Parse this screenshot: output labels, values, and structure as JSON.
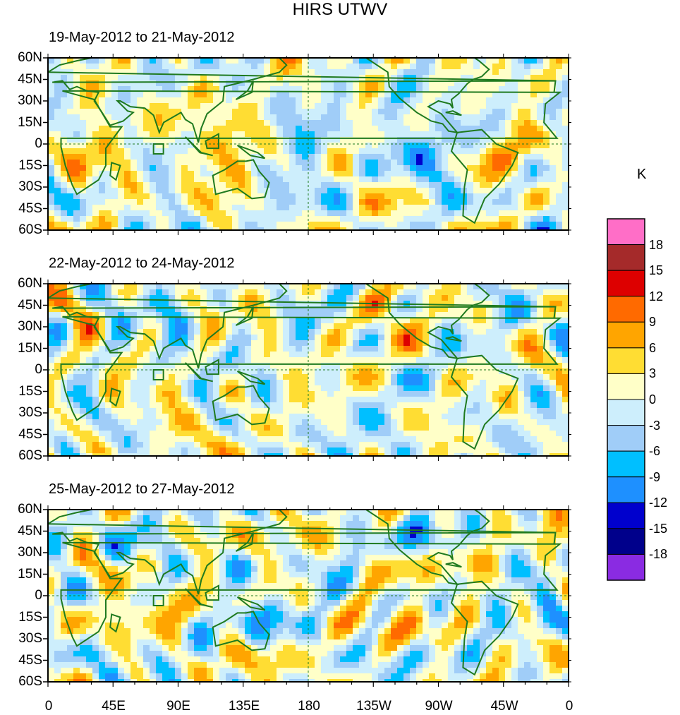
{
  "title": "HIRS UTWV",
  "unit": "K",
  "panels": [
    {
      "title": "19-May-2012 to 21-May-2012",
      "seed": 3
    },
    {
      "title": "22-May-2012 to 24-May-2012",
      "seed": 11
    },
    {
      "title": "25-May-2012 to 27-May-2012",
      "seed": 23
    }
  ],
  "lat_labels": [
    "60N",
    "45N",
    "30N",
    "15N",
    "0",
    "15S",
    "30S",
    "45S",
    "60S"
  ],
  "lon_labels": [
    "0",
    "45E",
    "90E",
    "135E",
    "180",
    "135W",
    "90W",
    "45W",
    "0"
  ],
  "colorbar": {
    "labels": [
      "18",
      "15",
      "12",
      "9",
      "6",
      "3",
      "0",
      "-3",
      "-6",
      "-9",
      "-12",
      "-15",
      "-18"
    ],
    "colors": [
      "#ff6ec7",
      "#a52a2a",
      "#dd0000",
      "#ff6a00",
      "#ffa500",
      "#ffdd33",
      "#ffffc8",
      "#cdeefc",
      "#a0cdf8",
      "#00bfff",
      "#1e90ff",
      "#0000cd",
      "#00008b",
      "#8a2be2"
    ]
  },
  "colors": {
    "coast": "#1f7a1f",
    "grid": "#1f7a1f",
    "frame": "#000000"
  }
}
